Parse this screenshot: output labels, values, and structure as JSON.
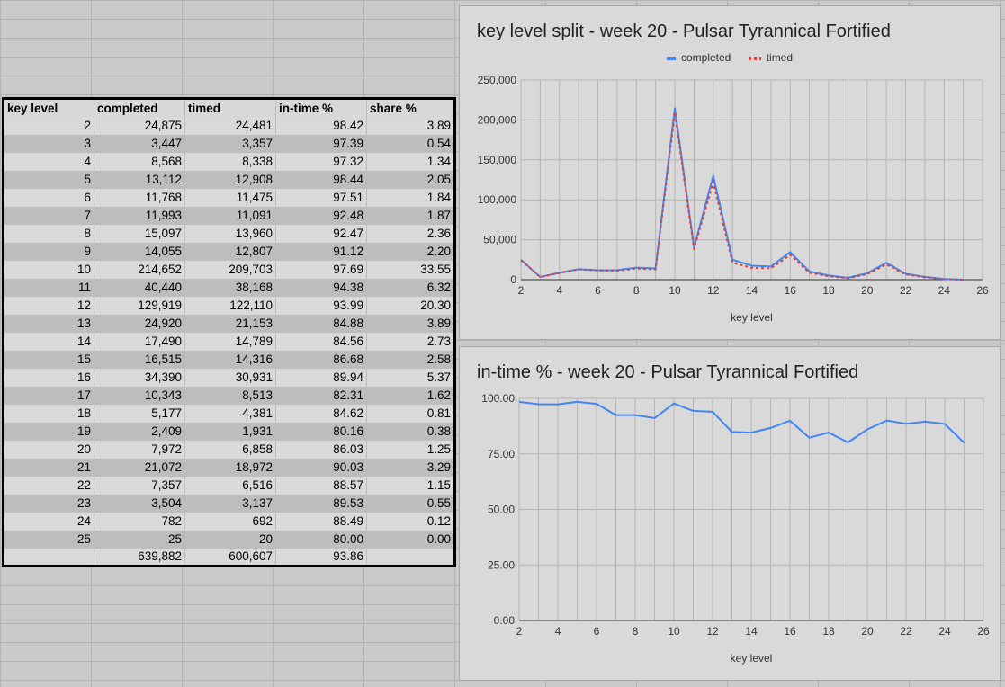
{
  "table": {
    "headers": [
      "key level",
      "completed",
      "timed",
      "in-time %",
      "share %"
    ],
    "rows": [
      [
        "2",
        "24,875",
        "24,481",
        "98.42",
        "3.89"
      ],
      [
        "3",
        "3,447",
        "3,357",
        "97.39",
        "0.54"
      ],
      [
        "4",
        "8,568",
        "8,338",
        "97.32",
        "1.34"
      ],
      [
        "5",
        "13,112",
        "12,908",
        "98.44",
        "2.05"
      ],
      [
        "6",
        "11,768",
        "11,475",
        "97.51",
        "1.84"
      ],
      [
        "7",
        "11,993",
        "11,091",
        "92.48",
        "1.87"
      ],
      [
        "8",
        "15,097",
        "13,960",
        "92.47",
        "2.36"
      ],
      [
        "9",
        "14,055",
        "12,807",
        "91.12",
        "2.20"
      ],
      [
        "10",
        "214,652",
        "209,703",
        "97.69",
        "33.55"
      ],
      [
        "11",
        "40,440",
        "38,168",
        "94.38",
        "6.32"
      ],
      [
        "12",
        "129,919",
        "122,110",
        "93.99",
        "20.30"
      ],
      [
        "13",
        "24,920",
        "21,153",
        "84.88",
        "3.89"
      ],
      [
        "14",
        "17,490",
        "14,789",
        "84.56",
        "2.73"
      ],
      [
        "15",
        "16,515",
        "14,316",
        "86.68",
        "2.58"
      ],
      [
        "16",
        "34,390",
        "30,931",
        "89.94",
        "5.37"
      ],
      [
        "17",
        "10,343",
        "8,513",
        "82.31",
        "1.62"
      ],
      [
        "18",
        "5,177",
        "4,381",
        "84.62",
        "0.81"
      ],
      [
        "19",
        "2,409",
        "1,931",
        "80.16",
        "0.38"
      ],
      [
        "20",
        "7,972",
        "6,858",
        "86.03",
        "1.25"
      ],
      [
        "21",
        "21,072",
        "18,972",
        "90.03",
        "3.29"
      ],
      [
        "22",
        "7,357",
        "6,516",
        "88.57",
        "1.15"
      ],
      [
        "23",
        "3,504",
        "3,137",
        "89.53",
        "0.55"
      ],
      [
        "24",
        "782",
        "692",
        "88.49",
        "0.12"
      ],
      [
        "25",
        "25",
        "20",
        "80.00",
        "0.00"
      ]
    ],
    "totals": [
      "",
      "639,882",
      "600,607",
      "93.86",
      ""
    ]
  },
  "chart_data": [
    {
      "type": "line",
      "title": "key level split - week 20 - Pulsar Tyrannical Fortified",
      "xlabel": "key level",
      "ylabel": "",
      "x": [
        2,
        3,
        4,
        5,
        6,
        7,
        8,
        9,
        10,
        11,
        12,
        13,
        14,
        15,
        16,
        17,
        18,
        19,
        20,
        21,
        22,
        23,
        24,
        25
      ],
      "series": [
        {
          "name": "completed",
          "color": "#4285f4",
          "values": [
            24875,
            3447,
            8568,
            13112,
            11768,
            11993,
            15097,
            14055,
            214652,
            40440,
            129919,
            24920,
            17490,
            16515,
            34390,
            10343,
            5177,
            2409,
            7972,
            21072,
            7357,
            3504,
            782,
            25
          ]
        },
        {
          "name": "timed",
          "color": "#db4437",
          "values": [
            24481,
            3357,
            8338,
            12908,
            11475,
            11091,
            13960,
            12807,
            209703,
            38168,
            122110,
            21153,
            14789,
            14316,
            30931,
            8513,
            4381,
            1931,
            6858,
            18972,
            6516,
            3137,
            692,
            20
          ]
        }
      ],
      "xlim": [
        2,
        26
      ],
      "ylim": [
        0,
        250000
      ],
      "xticks": [
        "2",
        "4",
        "6",
        "8",
        "10",
        "12",
        "14",
        "16",
        "18",
        "20",
        "22",
        "24",
        "26"
      ],
      "yticks": [
        "0",
        "50,000",
        "100,000",
        "150,000",
        "200,000",
        "250,000"
      ],
      "legend": "top-center",
      "grid": true
    },
    {
      "type": "line",
      "title": "in-time % - week 20 - Pulsar Tyrannical Fortified",
      "xlabel": "key level",
      "ylabel": "",
      "x": [
        2,
        3,
        4,
        5,
        6,
        7,
        8,
        9,
        10,
        11,
        12,
        13,
        14,
        15,
        16,
        17,
        18,
        19,
        20,
        21,
        22,
        23,
        24,
        25
      ],
      "series": [
        {
          "color": "#4285f4",
          "values": [
            98.42,
            97.39,
            97.32,
            98.44,
            97.51,
            92.48,
            92.47,
            91.12,
            97.69,
            94.38,
            93.99,
            84.88,
            84.56,
            86.68,
            89.94,
            82.31,
            84.62,
            80.16,
            86.03,
            90.03,
            88.57,
            89.53,
            88.49,
            80.0
          ]
        }
      ],
      "xlim": [
        2,
        26
      ],
      "ylim": [
        0,
        100
      ],
      "xticks": [
        "2",
        "4",
        "6",
        "8",
        "10",
        "12",
        "14",
        "16",
        "18",
        "20",
        "22",
        "24",
        "26"
      ],
      "yticks": [
        "0.00",
        "25.00",
        "50.00",
        "75.00",
        "100.00"
      ],
      "grid": true
    }
  ]
}
